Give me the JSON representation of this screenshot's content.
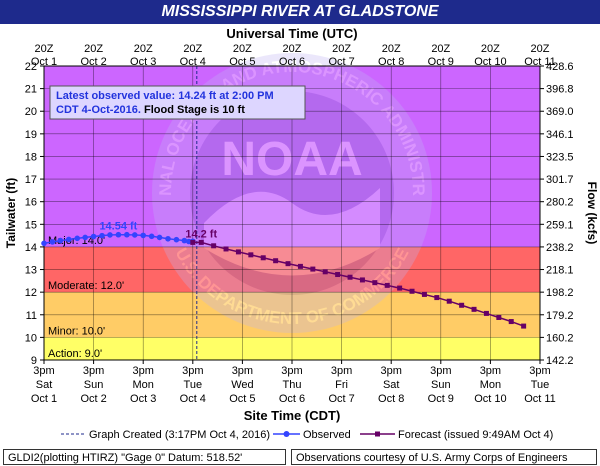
{
  "chart_data": {
    "type": "line",
    "title": "MISSISSIPPI RIVER AT GLADSTONE",
    "top_axis_label": "Universal Time (UTC)",
    "xlabel": "Site Time (CDT)",
    "ylabel": "Tailwater (ft)",
    "y2label": "Flow (kcfs)",
    "ylim": [
      9,
      22
    ],
    "yticks": [
      "9",
      "10",
      "11",
      "12",
      "13",
      "14",
      "15",
      "16",
      "17",
      "18",
      "19",
      "20",
      "21",
      "22"
    ],
    "y2ticks": [
      "142.2",
      "160.2",
      "179.2",
      "198.2",
      "218.1",
      "238.2",
      "259.1",
      "280.2",
      "301.7",
      "323.5",
      "346.1",
      "369.0",
      "396.8",
      "428.6"
    ],
    "bottom_ticks": [
      {
        "t": "3pm",
        "d": "Sat",
        "o": "Oct 1"
      },
      {
        "t": "3pm",
        "d": "Sun",
        "o": "Oct 2"
      },
      {
        "t": "3pm",
        "d": "Mon",
        "o": "Oct 3"
      },
      {
        "t": "3pm",
        "d": "Tue",
        "o": "Oct 4"
      },
      {
        "t": "3pm",
        "d": "Wed",
        "o": "Oct 5"
      },
      {
        "t": "3pm",
        "d": "Thu",
        "o": "Oct 6"
      },
      {
        "t": "3pm",
        "d": "Fri",
        "o": "Oct 7"
      },
      {
        "t": "3pm",
        "d": "Sat",
        "o": "Oct 8"
      },
      {
        "t": "3pm",
        "d": "Sun",
        "o": "Oct 9"
      },
      {
        "t": "3pm",
        "d": "Mon",
        "o": "Oct 10"
      },
      {
        "t": "3pm",
        "d": "Tue",
        "o": "Oct 11"
      }
    ],
    "top_ticks": [
      {
        "t": "20Z",
        "o": "Oct 1"
      },
      {
        "t": "20Z",
        "o": "Oct 2"
      },
      {
        "t": "20Z",
        "o": "Oct 3"
      },
      {
        "t": "20Z",
        "o": "Oct 4"
      },
      {
        "t": "20Z",
        "o": "Oct 5"
      },
      {
        "t": "20Z",
        "o": "Oct 6"
      },
      {
        "t": "20Z",
        "o": "Oct 7"
      },
      {
        "t": "20Z",
        "o": "Oct 8"
      },
      {
        "t": "20Z",
        "o": "Oct 9"
      },
      {
        "t": "20Z",
        "o": "Oct 10"
      },
      {
        "t": "20Z",
        "o": "Oct 11"
      }
    ],
    "stages": [
      {
        "label": "Action: 9.0'",
        "from": 9,
        "to": 10,
        "color": "#ffff66"
      },
      {
        "label": "Minor: 10.0'",
        "from": 10,
        "to": 12,
        "color": "#ffcc66"
      },
      {
        "label": "Moderate: 12.0'",
        "from": 12,
        "to": 14,
        "color": "#ff6666"
      },
      {
        "label": "Major: 14.0'",
        "from": 14,
        "to": 22,
        "color": "#cc66ff"
      }
    ],
    "series": [
      {
        "name": "Observed",
        "color": "#3344ff",
        "x": [
          0,
          0.17,
          0.33,
          0.5,
          0.67,
          0.83,
          1.0,
          1.17,
          1.33,
          1.5,
          1.67,
          1.83,
          2.0,
          2.17,
          2.33,
          2.5,
          2.67,
          2.83,
          3.0,
          2.92
        ],
        "y": [
          14.16,
          14.22,
          14.28,
          14.33,
          14.38,
          14.42,
          14.46,
          14.5,
          14.53,
          14.54,
          14.54,
          14.53,
          14.51,
          14.47,
          14.42,
          14.36,
          14.32,
          14.28,
          14.25,
          14.24
        ]
      },
      {
        "name": "Forecast",
        "color": "#660066",
        "x": [
          3.0,
          3.17,
          3.42,
          3.67,
          3.92,
          4.17,
          4.42,
          4.67,
          4.92,
          5.17,
          5.42,
          5.67,
          5.92,
          6.17,
          6.42,
          6.67,
          6.92,
          7.17,
          7.42,
          7.67,
          7.92,
          8.17,
          8.42,
          8.67,
          8.92,
          9.17,
          9.42,
          9.67
        ],
        "y": [
          14.2,
          14.2,
          14.05,
          13.91,
          13.78,
          13.65,
          13.52,
          13.39,
          13.26,
          13.14,
          13.02,
          12.9,
          12.78,
          12.66,
          12.54,
          12.42,
          12.3,
          12.18,
          12.04,
          11.9,
          11.76,
          11.6,
          11.42,
          11.24,
          11.06,
          10.88,
          10.7,
          10.5
        ]
      }
    ],
    "callouts": [
      {
        "label": "14.54 ft",
        "series": "Observed",
        "x": 1.5,
        "y": 14.54
      },
      {
        "label": "14.2 ft",
        "series": "Forecast",
        "x": 3.17,
        "y": 14.2
      }
    ],
    "latest_box": {
      "line1": "Latest observed value: 14.24 ft at 2:00 PM",
      "line2_a": "CDT 4-Oct-2016.",
      "line2_b": "Flood Stage is 10 ft"
    },
    "watermark": {
      "center": "NOAA",
      "ring_top": "NATIONAL OCEANIC AND ATMOSPHERIC ADMINISTRATION",
      "ring_bottom": "U.S. DEPARTMENT OF COMMERCE"
    },
    "legend": {
      "created": "Graph Created (3:17PM Oct 4, 2016)",
      "observed": "Observed",
      "forecast": "Forecast (issued 9:49AM Oct 4)"
    }
  },
  "footer": {
    "left": "GLDI2(plotting HTIRZ) \"Gage 0\" Datum: 518.52'",
    "right": "Observations courtesy of U.S. Army Corps of Engineers"
  }
}
